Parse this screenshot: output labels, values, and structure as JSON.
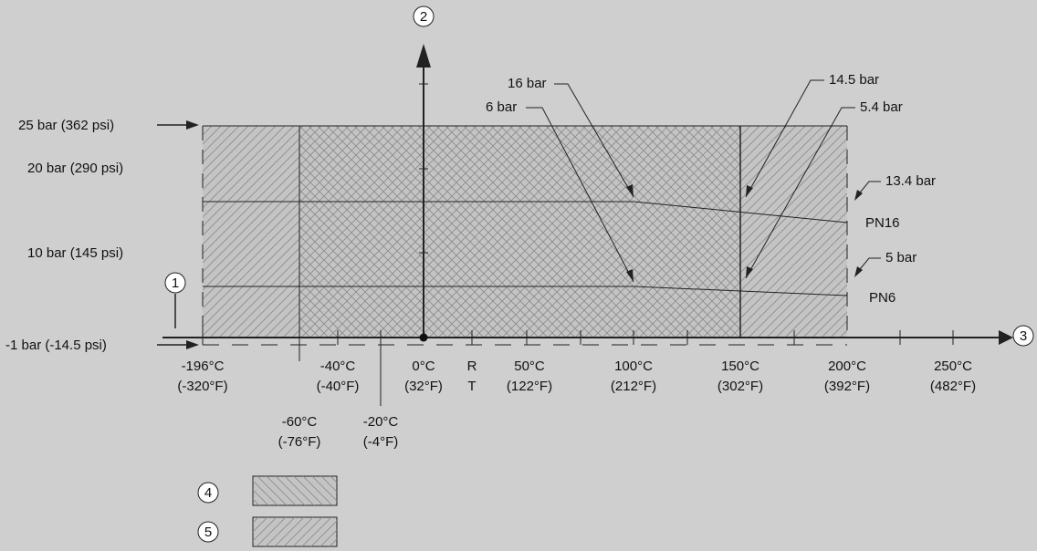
{
  "colors": {
    "background": "#cfcfcf",
    "region_fill": "#c2c2c2",
    "line": "#222222"
  },
  "callouts": {
    "pressure_axis": "2",
    "temperature_axis": "3",
    "left_marker": "1",
    "legend_a": "4",
    "legend_b": "5"
  },
  "pressure_labels": {
    "p25": "25 bar (362 psi)",
    "p20": "20 bar (290 psi)",
    "p10": "10 bar (145 psi)",
    "pmin": "-1 bar (-14.5 psi)"
  },
  "temperature_labels": [
    {
      "c": "-196°C",
      "f": "(-320°F)"
    },
    {
      "c": "-40°C",
      "f": "(-40°F)"
    },
    {
      "c": "0°C",
      "f": "(32°F)"
    },
    {
      "c": "R",
      "f": "T"
    },
    {
      "c": "50°C",
      "f": "(122°F)"
    },
    {
      "c": "100°C",
      "f": "(212°F)"
    },
    {
      "c": "150°C",
      "f": "(302°F)"
    },
    {
      "c": "200°C",
      "f": "(392°F)"
    },
    {
      "c": "250°C",
      "f": "(482°F)"
    }
  ],
  "lower_temperature_labels": [
    {
      "c": "-60°C",
      "f": "(-76°F)"
    },
    {
      "c": "-20°C",
      "f": "(-4°F)"
    }
  ],
  "annotations": {
    "a16": "16 bar",
    "a6": "6 bar",
    "a145": "14.5 bar",
    "a54": "5.4 bar",
    "a134": "13.4 bar",
    "a5": "5 bar"
  },
  "curves": {
    "pn16": "PN16",
    "pn6": "PN6"
  }
}
